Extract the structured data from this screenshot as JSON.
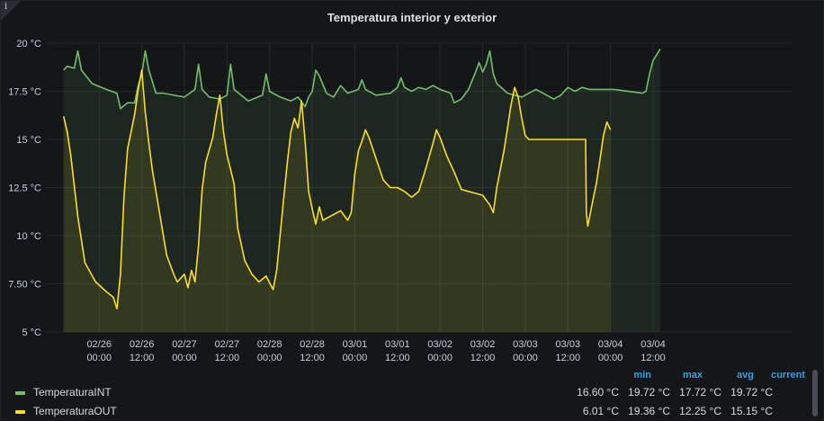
{
  "panel": {
    "title": "Temperatura interior y exterior",
    "info_icon": "info-icon"
  },
  "colors": {
    "int": "#73bf69",
    "out": "#fade2a",
    "grid": "#26282c",
    "bg": "#141619"
  },
  "chart_data": {
    "type": "line",
    "title": "Temperatura interior y exterior",
    "y_ticks": [
      "20 °C",
      "17.5 °C",
      "15 °C",
      "12.5 °C",
      "10 °C",
      "7.50 °C",
      "5 °C"
    ],
    "y_range": [
      5,
      20
    ],
    "x_range_hours": [
      -15,
      195
    ],
    "x_ticks": [
      {
        "h": 0,
        "l1": "02/26",
        "l2": "00:00"
      },
      {
        "h": 12,
        "l1": "02/26",
        "l2": "12:00"
      },
      {
        "h": 24,
        "l1": "02/27",
        "l2": "00:00"
      },
      {
        "h": 36,
        "l1": "02/27",
        "l2": "12:00"
      },
      {
        "h": 48,
        "l1": "02/28",
        "l2": "00:00"
      },
      {
        "h": 60,
        "l1": "02/28",
        "l2": "12:00"
      },
      {
        "h": 72,
        "l1": "03/01",
        "l2": "00:00"
      },
      {
        "h": 84,
        "l1": "03/01",
        "l2": "12:00"
      },
      {
        "h": 96,
        "l1": "03/02",
        "l2": "00:00"
      },
      {
        "h": 108,
        "l1": "03/02",
        "l2": "12:00"
      },
      {
        "h": 120,
        "l1": "03/03",
        "l2": "00:00"
      },
      {
        "h": 132,
        "l1": "03/03",
        "l2": "12:00"
      },
      {
        "h": 144,
        "l1": "03/04",
        "l2": "00:00"
      },
      {
        "h": 156,
        "l1": "03/04",
        "l2": "12:00"
      }
    ],
    "grid": true,
    "series": [
      {
        "name": "TemperaturaINT",
        "color": "#73bf69",
        "fill": true,
        "points": [
          [
            -10,
            18.6
          ],
          [
            -9,
            18.8
          ],
          [
            -7,
            18.7
          ],
          [
            -6,
            19.6
          ],
          [
            -5,
            18.6
          ],
          [
            -2,
            17.9
          ],
          [
            2,
            17.6
          ],
          [
            5,
            17.4
          ],
          [
            6,
            16.6
          ],
          [
            8,
            16.9
          ],
          [
            10,
            16.9
          ],
          [
            11,
            17.8
          ],
          [
            12,
            18.4
          ],
          [
            13,
            19.6
          ],
          [
            14,
            18.6
          ],
          [
            16,
            17.4
          ],
          [
            18,
            17.4
          ],
          [
            24,
            17.2
          ],
          [
            27,
            17.6
          ],
          [
            28,
            18.9
          ],
          [
            29,
            17.6
          ],
          [
            31,
            17.2
          ],
          [
            34,
            17.1
          ],
          [
            36,
            17.3
          ],
          [
            37,
            18.9
          ],
          [
            38,
            17.6
          ],
          [
            42,
            17.0
          ],
          [
            46,
            17.3
          ],
          [
            47,
            18.4
          ],
          [
            48,
            17.5
          ],
          [
            51,
            17.2
          ],
          [
            54,
            17.0
          ],
          [
            56,
            17.2
          ],
          [
            58,
            16.7
          ],
          [
            59,
            17.2
          ],
          [
            60,
            17.5
          ],
          [
            61,
            18.6
          ],
          [
            62,
            18.3
          ],
          [
            64,
            17.4
          ],
          [
            66,
            17.2
          ],
          [
            68,
            17.8
          ],
          [
            70,
            17.4
          ],
          [
            73,
            17.6
          ],
          [
            74,
            18.1
          ],
          [
            75,
            17.6
          ],
          [
            78,
            17.3
          ],
          [
            82,
            17.4
          ],
          [
            84,
            17.7
          ],
          [
            85,
            18.2
          ],
          [
            86,
            17.7
          ],
          [
            88,
            17.5
          ],
          [
            90,
            17.7
          ],
          [
            92,
            17.6
          ],
          [
            94,
            17.8
          ],
          [
            96,
            17.6
          ],
          [
            99,
            17.4
          ],
          [
            100,
            16.9
          ],
          [
            102,
            17.1
          ],
          [
            104,
            17.6
          ],
          [
            106,
            18.5
          ],
          [
            107,
            19.0
          ],
          [
            108,
            18.5
          ],
          [
            109,
            18.9
          ],
          [
            110,
            19.6
          ],
          [
            111,
            18.4
          ],
          [
            112,
            17.9
          ],
          [
            115,
            17.4
          ],
          [
            119,
            17.2
          ],
          [
            121,
            17.4
          ],
          [
            123,
            17.6
          ],
          [
            125,
            17.4
          ],
          [
            128,
            17.1
          ],
          [
            130,
            17.3
          ],
          [
            132,
            17.7
          ],
          [
            134,
            17.5
          ],
          [
            136,
            17.7
          ],
          [
            138,
            17.6
          ],
          [
            145,
            17.6
          ],
          [
            153,
            17.4
          ],
          [
            154,
            17.5
          ],
          [
            155,
            18.4
          ],
          [
            156,
            19.1
          ],
          [
            158,
            19.7
          ]
        ]
      },
      {
        "name": "TemperaturaOUT",
        "color": "#fade2a",
        "fill": true,
        "points": [
          [
            -10,
            16.2
          ],
          [
            -9,
            15.4
          ],
          [
            -8,
            14.2
          ],
          [
            -6,
            11.0
          ],
          [
            -4,
            8.6
          ],
          [
            -1,
            7.6
          ],
          [
            2,
            7.1
          ],
          [
            4,
            6.8
          ],
          [
            5,
            6.2
          ],
          [
            6,
            8.0
          ],
          [
            7,
            12.0
          ],
          [
            8,
            14.5
          ],
          [
            10,
            16.3
          ],
          [
            11,
            17.6
          ],
          [
            12,
            18.6
          ],
          [
            13,
            16.4
          ],
          [
            14,
            14.8
          ],
          [
            15,
            13.4
          ],
          [
            17,
            11.2
          ],
          [
            19,
            9.0
          ],
          [
            21,
            8.0
          ],
          [
            22,
            7.6
          ],
          [
            24,
            8.0
          ],
          [
            25,
            7.3
          ],
          [
            26,
            8.2
          ],
          [
            27,
            7.6
          ],
          [
            28,
            9.5
          ],
          [
            29,
            12.4
          ],
          [
            30,
            13.8
          ],
          [
            32,
            15.1
          ],
          [
            33,
            16.3
          ],
          [
            34,
            17.3
          ],
          [
            35,
            15.4
          ],
          [
            36,
            14.2
          ],
          [
            38,
            12.7
          ],
          [
            39,
            10.4
          ],
          [
            41,
            8.7
          ],
          [
            43,
            8.0
          ],
          [
            45,
            7.6
          ],
          [
            47,
            7.9
          ],
          [
            49,
            7.2
          ],
          [
            50,
            8.2
          ],
          [
            52,
            12.0
          ],
          [
            53,
            13.8
          ],
          [
            54,
            15.4
          ],
          [
            55,
            16.1
          ],
          [
            56,
            15.6
          ],
          [
            57,
            17.0
          ],
          [
            58,
            14.9
          ],
          [
            59,
            12.3
          ],
          [
            60,
            11.4
          ],
          [
            61,
            10.6
          ],
          [
            62,
            11.5
          ],
          [
            63,
            10.8
          ],
          [
            64,
            10.9
          ],
          [
            66,
            11.1
          ],
          [
            68,
            11.3
          ],
          [
            70,
            10.8
          ],
          [
            71,
            11.2
          ],
          [
            72,
            13.2
          ],
          [
            73,
            14.4
          ],
          [
            74,
            14.9
          ],
          [
            75,
            15.5
          ],
          [
            76,
            15.1
          ],
          [
            78,
            14.0
          ],
          [
            80,
            12.9
          ],
          [
            82,
            12.5
          ],
          [
            84,
            12.5
          ],
          [
            86,
            12.3
          ],
          [
            88,
            12.0
          ],
          [
            90,
            12.3
          ],
          [
            92,
            13.5
          ],
          [
            94,
            14.8
          ],
          [
            95,
            15.5
          ],
          [
            96,
            15.1
          ],
          [
            98,
            14.1
          ],
          [
            100,
            13.3
          ],
          [
            102,
            12.4
          ],
          [
            104,
            12.3
          ],
          [
            106,
            12.2
          ],
          [
            108,
            12.1
          ],
          [
            110,
            11.6
          ],
          [
            111,
            11.2
          ],
          [
            112,
            12.5
          ],
          [
            114,
            14.4
          ],
          [
            115,
            15.6
          ],
          [
            116,
            16.8
          ],
          [
            117,
            17.7
          ],
          [
            118,
            17.2
          ],
          [
            119,
            16.1
          ],
          [
            120,
            15.2
          ],
          [
            121,
            15.0
          ],
          [
            136,
            15.0
          ],
          [
            137,
            15.0
          ],
          [
            137.2,
            11.2
          ],
          [
            137.6,
            10.5
          ],
          [
            139,
            11.8
          ],
          [
            140,
            12.7
          ],
          [
            141,
            13.9
          ],
          [
            142,
            15.2
          ],
          [
            143,
            15.9
          ],
          [
            144,
            15.5
          ]
        ]
      }
    ]
  },
  "legend": {
    "headers": {
      "min": "min",
      "max": "max",
      "avg": "avg",
      "current": "current"
    },
    "rows": [
      {
        "name": "TemperaturaINT",
        "min": "16.60 °C",
        "max": "19.72 °C",
        "avg": "17.72 °C",
        "current": "19.72 °C"
      },
      {
        "name": "TemperaturaOUT",
        "min": "6.01 °C",
        "max": "19.36 °C",
        "avg": "12.25 °C",
        "current": "15.15 °C"
      }
    ]
  }
}
